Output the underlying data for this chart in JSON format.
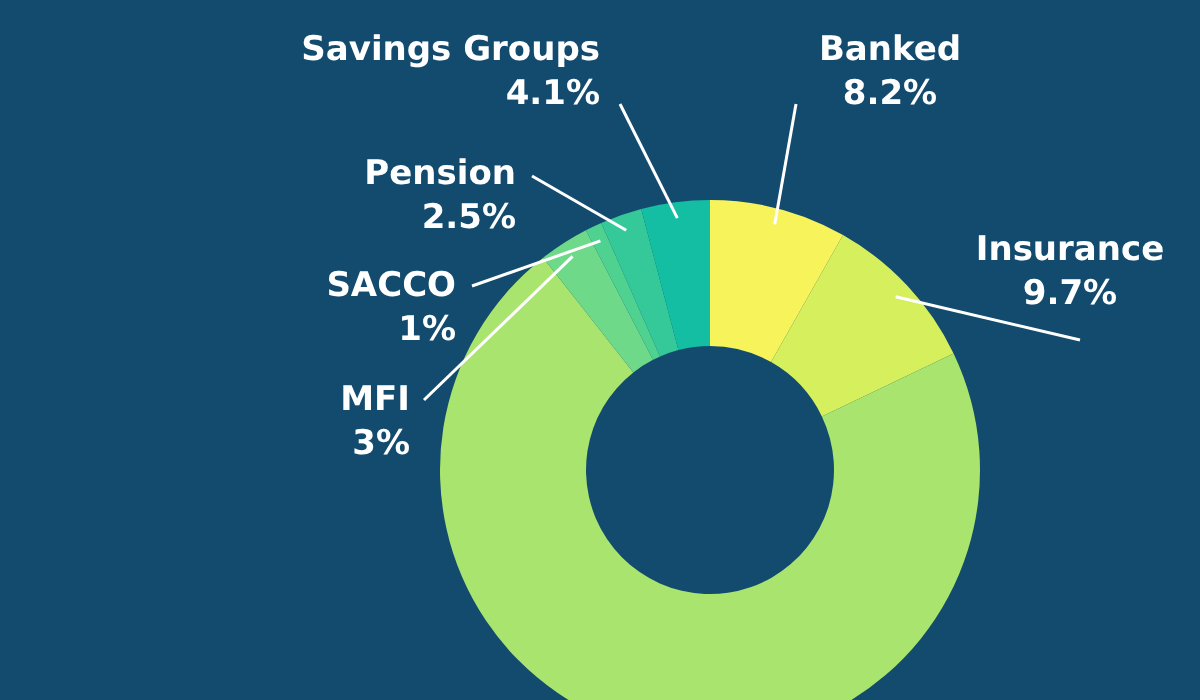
{
  "chart_data": {
    "type": "donut",
    "categories": [
      "Banked",
      "Insurance",
      null,
      "MFI",
      "SACCO",
      "Pension",
      "Savings Groups"
    ],
    "values": [
      8.2,
      9.7,
      71.5,
      3,
      1,
      2.5,
      4.1
    ],
    "value_labels": [
      "8.2%",
      "9.7%",
      null,
      "3%",
      "1%",
      "2.5%",
      "4.1%"
    ],
    "colors": [
      "#f7f35a",
      "#d6ef5c",
      "#a8e46e",
      "#6fd98a",
      "#4fd190",
      "#35c898",
      "#13bea2"
    ]
  }
}
